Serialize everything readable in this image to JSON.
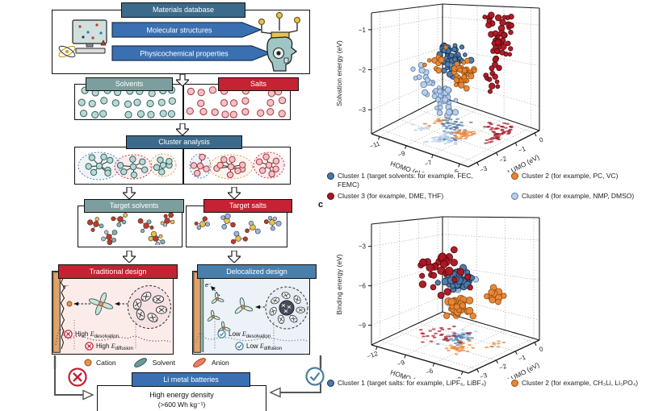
{
  "panel_labels": {
    "c": "c"
  },
  "flowchart": {
    "materials": {
      "header": "Materials database",
      "banners": [
        "Molecular structures",
        "Physicochemical properties"
      ]
    },
    "pools": {
      "solvents": "Solvents",
      "salts": "Salts"
    },
    "cluster_analysis": "Cluster analysis",
    "targets": {
      "solvents": "Target solvents",
      "salts": "Target salts"
    },
    "designs": {
      "traditional": {
        "header": "Traditional design",
        "electron": "e⁻",
        "labels": [
          {
            "prefix": "High ",
            "e": "E",
            "sub": "desolvation"
          },
          {
            "prefix": "High ",
            "e": "E",
            "sub": "diffusion"
          }
        ]
      },
      "delocalized": {
        "header": "Delocalized design",
        "electron": "e⁻",
        "labels": [
          {
            "prefix": "Low ",
            "e": "E",
            "sub": "desolvation"
          },
          {
            "prefix": "Low ",
            "e": "E",
            "sub": "diffusion"
          }
        ]
      }
    },
    "ion_legend": [
      {
        "label": "Cation"
      },
      {
        "label": "Solvent"
      },
      {
        "label": "Anion"
      }
    ],
    "battery": {
      "header": "Li metal batteries",
      "line1": "High energy density",
      "line2": "(>600 Wh kg⁻¹)"
    }
  },
  "colors": {
    "header_dark_blue": "#3c6a8a",
    "banner_blue": "#3a70b2",
    "teal_header": "#7d9e9e",
    "red_header": "#c52233",
    "steel_header": "#4b7fab",
    "battery_blue": "#3a70b2",
    "cross_red": "#c22233",
    "check_teal": "#4a7f9e",
    "cluster1": "#4d79a8",
    "cluster2": "#ec8435",
    "cluster3": "#a81722",
    "cluster4": "#b7cde8"
  },
  "chart_data": [
    {
      "id": "b",
      "type": "scatter3d",
      "axes": {
        "x": {
          "label": "HOMO (eV)",
          "ticks": [
            -11,
            -9,
            -7,
            -5
          ],
          "range": [
            -11.6,
            -4.35
          ]
        },
        "y": {
          "label": "LUMO (eV)",
          "ticks": [
            -3,
            -2,
            -1,
            0
          ],
          "range": [
            -3.45,
            0.25
          ]
        },
        "z": {
          "label": "Solvation energy (eV)",
          "ticks": [
            -1,
            -2,
            -3
          ],
          "range": [
            -3.6,
            -0.58
          ]
        }
      },
      "grid": true,
      "clusters": [
        {
          "name": "cluster-1",
          "legend": "Cluster 1 (target solvents: for example, FEC, FEMC)",
          "color": "#4d79a8",
          "edge": "#16324f",
          "r": 3.1,
          "seed": 11,
          "blobs": [
            {
              "center": [
                -8.7,
                -1.15,
                -1.8
              ],
              "spread": [
                0.85,
                0.5,
                0.38
              ],
              "n": 42
            },
            {
              "center": [
                -7.7,
                -1.9,
                -1.55
              ],
              "spread": [
                0.5,
                0.35,
                0.3
              ],
              "n": 14
            }
          ]
        },
        {
          "name": "cluster-2",
          "legend": "Cluster 2 (for example, PC, VC)",
          "color": "#ec8435",
          "edge": "#93510f",
          "r": 3.0,
          "seed": 22,
          "blobs": [
            {
              "center": [
                -7.35,
                -1.55,
                -2.05
              ],
              "spread": [
                0.5,
                0.35,
                0.28
              ],
              "n": 38
            },
            {
              "center": [
                -9.7,
                -1.35,
                -1.95
              ],
              "spread": [
                0.45,
                0.3,
                0.22
              ],
              "n": 10
            }
          ]
        },
        {
          "name": "cluster-3",
          "legend": "Cluster 3 (for example, DME, THF)",
          "color": "#a81722",
          "edge": "#5f060d",
          "r": 3.1,
          "seed": 33,
          "blobs": [
            {
              "center": [
                -6.0,
                -0.65,
                -1.35
              ],
              "spread": [
                0.55,
                0.4,
                0.42
              ],
              "n": 30
            },
            {
              "center": [
                -5.7,
                -1.3,
                -2.1
              ],
              "spread": [
                0.45,
                0.4,
                0.3
              ],
              "n": 14
            },
            {
              "center": [
                -6.6,
                -0.35,
                -0.85
              ],
              "spread": [
                0.8,
                0.3,
                0.18
              ],
              "n": 14
            }
          ]
        },
        {
          "name": "cluster-4",
          "legend": "Cluster 4 (for example, NMP, DMSO)",
          "color": "#b7cde8",
          "edge": "#5c80ab",
          "r": 3.1,
          "seed": 44,
          "blobs": [
            {
              "center": [
                -7.95,
                -2.35,
                -2.55
              ],
              "spread": [
                0.7,
                0.45,
                0.4
              ],
              "n": 36
            },
            {
              "center": [
                -9.8,
                -2.0,
                -2.2
              ],
              "spread": [
                0.5,
                0.3,
                0.3
              ],
              "n": 10
            }
          ]
        }
      ]
    },
    {
      "id": "c",
      "type": "scatter3d",
      "axes": {
        "x": {
          "label": "HOMO (eV)",
          "ticks": [
            -12,
            -9,
            -6,
            -3
          ],
          "range": [
            -12.6,
            -2.4
          ]
        },
        "y": {
          "label": "LUMO (eV)",
          "ticks": [
            -3,
            -2,
            -1,
            0
          ],
          "range": [
            -3.45,
            0.25
          ]
        },
        "z": {
          "label": "Binding energy (eV)",
          "ticks": [
            -3,
            -6,
            -9
          ],
          "range": [
            -10.5,
            -1.3
          ]
        }
      },
      "grid": true,
      "clusters": [
        {
          "name": "cluster-1",
          "legend": "Cluster 1 (target salts: for example, LiPF₆, LiBF₄)",
          "color": "#4d79a8",
          "edge": "#16324f",
          "r": 3.8,
          "seed": 55,
          "blobs": [
            {
              "center": [
                -7.7,
                -1.3,
                -5.7
              ],
              "spread": [
                1.0,
                0.5,
                0.7
              ],
              "n": 38
            }
          ]
        },
        {
          "name": "cluster-2",
          "legend": "Cluster 2 (for example, CH₃Li, Li₃PO₄)",
          "color": "#ec8435",
          "edge": "#93510f",
          "r": 3.8,
          "seed": 66,
          "blobs": [
            {
              "center": [
                -6.4,
                -1.8,
                -7.3
              ],
              "spread": [
                0.8,
                0.5,
                0.65
              ],
              "n": 30
            },
            {
              "center": [
                -4.6,
                -0.9,
                -6.6
              ],
              "spread": [
                0.6,
                0.4,
                0.6
              ],
              "n": 10
            }
          ]
        },
        {
          "name": "cluster-3",
          "color": "#a81722",
          "edge": "#5f060d",
          "r": 4.2,
          "seed": 77,
          "blobs": [
            {
              "center": [
                -9.3,
                -1.3,
                -5.2
              ],
              "spread": [
                1.9,
                0.9,
                1.4
              ],
              "n": 30
            }
          ]
        },
        {
          "name": "cluster-4",
          "color": "#b7cde8",
          "edge": "#5c80ab",
          "r": 3.6,
          "seed": 88,
          "blobs": [
            {
              "center": [
                -8.3,
                -1.05,
                -6.0
              ],
              "spread": [
                1.1,
                0.5,
                0.7
              ],
              "n": 26
            }
          ]
        }
      ]
    }
  ]
}
